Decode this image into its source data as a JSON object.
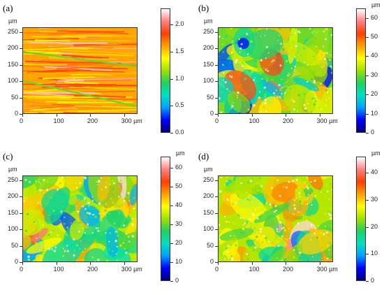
{
  "chart_data": [
    {
      "type": "heatmap",
      "panel_label": "(a)",
      "x_unit_label": "µm",
      "y_unit_label": "µm",
      "x_ticks": [
        "0",
        "100",
        "200",
        "300 µm"
      ],
      "y_ticks": [
        "0",
        "50",
        "100",
        "150",
        "200",
        "250"
      ],
      "xlim": [
        0,
        340
      ],
      "ylim": [
        0,
        265
      ],
      "colorbar_ticks": [
        "0.0",
        "0.5",
        "1.0",
        "1.5",
        "2.0"
      ],
      "colorbar_range": [
        0,
        2.3
      ],
      "texture": "striated",
      "dominant_value": 1.6
    },
    {
      "type": "heatmap",
      "panel_label": "(b)",
      "x_unit_label": "µm",
      "y_unit_label": "µm",
      "x_ticks": [
        "0",
        "100",
        "200",
        "300 µm"
      ],
      "y_ticks": [
        "0",
        "50",
        "100",
        "150",
        "200",
        "250"
      ],
      "xlim": [
        0,
        340
      ],
      "ylim": [
        0,
        265
      ],
      "colorbar_ticks": [
        "0",
        "10",
        "20",
        "30",
        "40",
        "50",
        "60"
      ],
      "colorbar_range": [
        0,
        65
      ],
      "texture": "patchy",
      "dominant_value": 30
    },
    {
      "type": "heatmap",
      "panel_label": "(c)",
      "x_unit_label": "µm",
      "y_unit_label": "µm",
      "x_ticks": [
        "0",
        "100",
        "200",
        "300 µm"
      ],
      "y_ticks": [
        "0",
        "50",
        "100",
        "150",
        "200",
        "250"
      ],
      "xlim": [
        0,
        340
      ],
      "ylim": [
        0,
        265
      ],
      "colorbar_ticks": [
        "0",
        "10",
        "20",
        "30",
        "40",
        "50",
        "60"
      ],
      "colorbar_range": [
        0,
        66
      ],
      "texture": "patchy",
      "dominant_value": 35
    },
    {
      "type": "heatmap",
      "panel_label": "(d)",
      "x_unit_label": "µm",
      "y_unit_label": "µm",
      "x_ticks": [
        "0",
        "100",
        "200",
        "300 µm"
      ],
      "y_ticks": [
        "0",
        "50",
        "100",
        "150",
        "200",
        "250"
      ],
      "xlim": [
        0,
        340
      ],
      "ylim": [
        0,
        265
      ],
      "colorbar_ticks": [
        "0",
        "10",
        "20",
        "30",
        "40"
      ],
      "colorbar_range": [
        0,
        46
      ],
      "texture": "patchy",
      "dominant_value": 24
    }
  ],
  "colormap": [
    "#000080",
    "#0000ff",
    "#00a0ff",
    "#00e0c0",
    "#20d060",
    "#a0e000",
    "#ffff00",
    "#ffa000",
    "#ff4000",
    "#ff8080",
    "#ffffff"
  ]
}
